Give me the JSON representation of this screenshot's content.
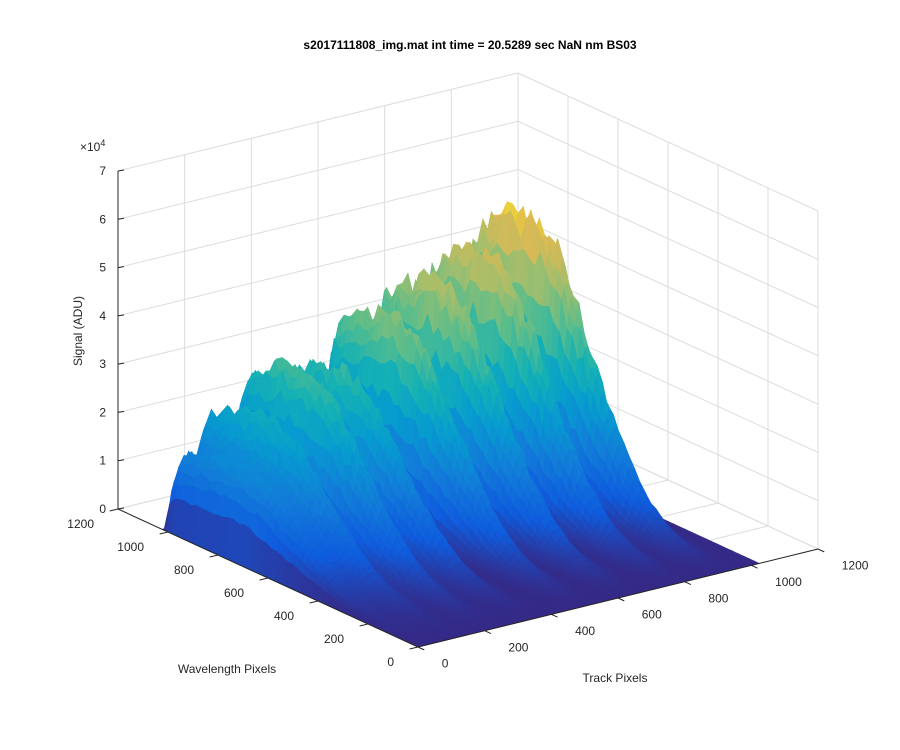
{
  "chart_data": {
    "type": "surface",
    "title": "s2017111808_img.mat int time = 20.5289 sec  NaN nm BS03",
    "xlabel": "Track Pixels",
    "ylabel": "Wavelength Pixels",
    "zlabel": "Signal (ADU)",
    "z_multiplier": "×10",
    "z_multiplier_exp": "4",
    "xlim": [
      0,
      1200
    ],
    "ylim": [
      0,
      1200
    ],
    "zlim": [
      0,
      70000
    ],
    "x_ticks": [
      "0",
      "200",
      "400",
      "600",
      "800",
      "1000",
      "1200"
    ],
    "y_ticks": [
      "0",
      "200",
      "400",
      "600",
      "800",
      "1000",
      "1200"
    ],
    "z_ticks": [
      "0",
      "1",
      "2",
      "3",
      "4",
      "5",
      "6",
      "7"
    ],
    "grid": true,
    "colormap": "parula",
    "data_extent": {
      "track": [
        0,
        1024
      ],
      "wavelength": [
        0,
        1024
      ]
    },
    "ridges": [
      {
        "track_center": 40,
        "peak_signal": 18000
      },
      {
        "track_center": 120,
        "peak_signal": 27000
      },
      {
        "track_center": 230,
        "peak_signal": 35000
      },
      {
        "track_center": 345,
        "peak_signal": 33000
      },
      {
        "track_center": 500,
        "peak_signal": 42000
      },
      {
        "track_center": 640,
        "peak_signal": 46000
      },
      {
        "track_center": 780,
        "peak_signal": 50000
      },
      {
        "track_center": 910,
        "peak_signal": 56000
      }
    ],
    "wavelength_profile_peak_pixel": 760
  }
}
